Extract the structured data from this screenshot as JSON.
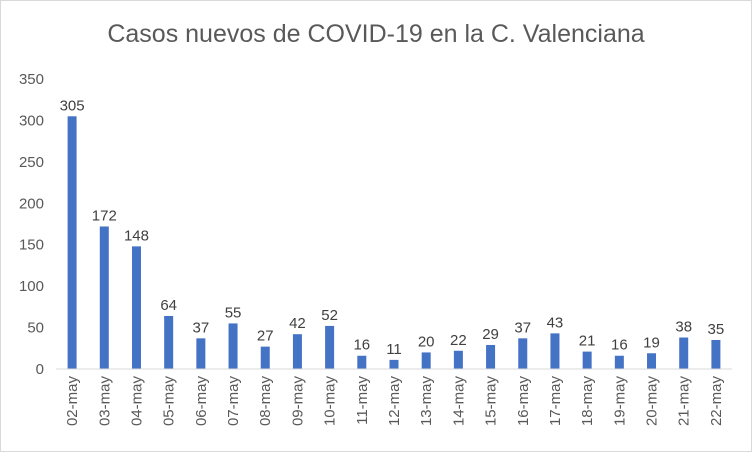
{
  "chart_data": {
    "type": "bar",
    "title": "Casos nuevos de COVID-19 en la C. Valenciana",
    "xlabel": "",
    "ylabel": "",
    "categories": [
      "02-may",
      "03-may",
      "04-may",
      "05-may",
      "06-may",
      "07-may",
      "08-may",
      "09-may",
      "10-may",
      "11-may",
      "12-may",
      "13-may",
      "14-may",
      "15-may",
      "16-may",
      "17-may",
      "18-may",
      "19-may",
      "20-may",
      "21-may",
      "22-may"
    ],
    "values": [
      305,
      172,
      148,
      64,
      37,
      55,
      27,
      42,
      52,
      16,
      11,
      20,
      22,
      29,
      37,
      43,
      21,
      16,
      19,
      38,
      35
    ],
    "ylim": [
      0,
      350
    ],
    "yticks": [
      0,
      50,
      100,
      150,
      200,
      250,
      300,
      350
    ],
    "grid": false,
    "legend": "none",
    "bar_color": "#4472c4"
  }
}
